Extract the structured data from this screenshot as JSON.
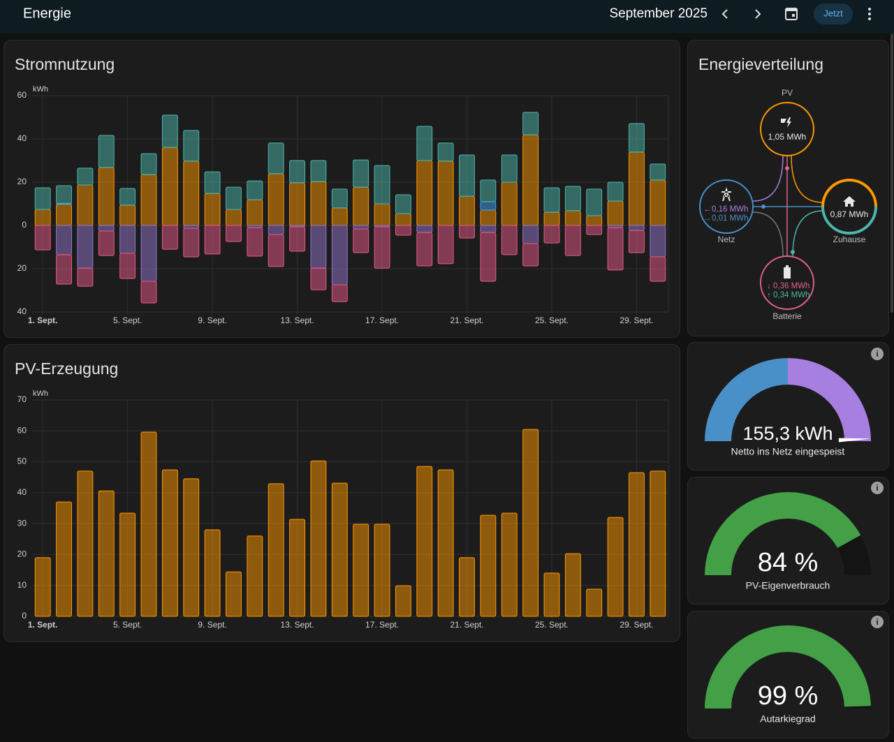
{
  "header": {
    "title": "Energie",
    "period": "September 2025",
    "now_button": "Jetzt"
  },
  "chart_data": [
    {
      "type": "bar",
      "title": "Stromnutzung",
      "unit": "kWh",
      "categories": [
        "1. Sept.",
        null,
        null,
        null,
        "5. Sept.",
        null,
        null,
        null,
        "9. Sept.",
        null,
        null,
        null,
        "13. Sept.",
        null,
        null,
        null,
        "17. Sept.",
        null,
        null,
        null,
        "21. Sept.",
        null,
        null,
        null,
        "25. Sept.",
        null,
        null,
        null,
        "29. Sept.",
        null
      ],
      "ylim": [
        -40,
        60
      ],
      "yticks": [
        {
          "value": -40,
          "label": "40"
        },
        {
          "value": -20,
          "label": "20"
        },
        0,
        20,
        40,
        60
      ],
      "series": [
        {
          "color": "#ff9800",
          "values": [
            7.4,
            9.7,
            18.7,
            26.8,
            9.4,
            23.5,
            36.1,
            29.7,
            14.8,
            7.4,
            11.9,
            23.9,
            19.7,
            20.3,
            8.1,
            17.7,
            10,
            5.5,
            30,
            29.7,
            13.5,
            7.1,
            20,
            41.9,
            6.1,
            6.8,
            4.5,
            11.3,
            33.9,
            21
          ]
        },
        {
          "color": "#42a5f5",
          "values": [
            0,
            0.5,
            0,
            0,
            0,
            0,
            0,
            0,
            0,
            0,
            0,
            0,
            0,
            0,
            0,
            0,
            0,
            0,
            0,
            0,
            0,
            3.9,
            0,
            0,
            0,
            0,
            0,
            0,
            0,
            0
          ]
        },
        {
          "color": "#4db6ac",
          "values": [
            10,
            8.2,
            7.8,
            14.8,
            7.7,
            9.7,
            14.9,
            14.2,
            10,
            10.3,
            8.7,
            14.2,
            10.3,
            9.7,
            8.7,
            12.6,
            17.7,
            8.7,
            15.8,
            8.4,
            19.1,
            10,
            12.6,
            10.4,
            11.3,
            11.3,
            12.3,
            8.7,
            13.2,
            7.4
          ]
        },
        {
          "color": "#9575cd",
          "values": [
            0,
            -13.5,
            -19.7,
            -2.6,
            -12.9,
            -25.8,
            0,
            -1.3,
            0,
            0,
            -1,
            -4.2,
            -0.6,
            -19.7,
            -27.4,
            -1.6,
            -0.6,
            0,
            -3.2,
            0,
            0,
            -3.2,
            0,
            -8.4,
            0,
            0,
            0,
            -1,
            -2.3,
            -14.5
          ]
        },
        {
          "color": "#e85a8a",
          "values": [
            -11.3,
            -13.6,
            -8.4,
            -11.3,
            -11.6,
            -10,
            -11,
            -13.2,
            -13.2,
            -7.4,
            -13.2,
            -14.8,
            -11.3,
            -10,
            -7.8,
            -11,
            -19.1,
            -4.5,
            -15.5,
            -17.7,
            -5.8,
            -22.6,
            -13.5,
            -10.3,
            -8.1,
            -13.9,
            -4.2,
            -19.6,
            -10.3,
            -11.3
          ]
        }
      ]
    },
    {
      "type": "bar",
      "title": "PV-Erzeugung",
      "unit": "kWh",
      "categories": [
        "1. Sept.",
        null,
        null,
        null,
        "5. Sept.",
        null,
        null,
        null,
        "9. Sept.",
        null,
        null,
        null,
        "13. Sept.",
        null,
        null,
        null,
        "17. Sept.",
        null,
        null,
        null,
        "21. Sept.",
        null,
        null,
        null,
        "25. Sept.",
        null,
        null,
        null,
        "29. Sept.",
        null
      ],
      "ylim": [
        0,
        70
      ],
      "yticks": [
        0,
        10,
        20,
        30,
        40,
        50,
        60,
        70
      ],
      "series": [
        {
          "color": "#ff9800",
          "values": [
            19,
            37,
            47,
            40.6,
            33.4,
            59.6,
            47.4,
            44.5,
            28,
            14.4,
            26,
            42.9,
            31.4,
            50.3,
            43.1,
            29.8,
            29.8,
            9.9,
            48.5,
            47.4,
            19,
            32.7,
            33.4,
            60.5,
            14,
            20.3,
            8.8,
            32,
            46.5,
            47
          ]
        }
      ]
    }
  ],
  "distribution": {
    "title": "Energieverteilung",
    "pv": {
      "label": "PV",
      "value": "1,05 MWh"
    },
    "grid": {
      "label": "Netz",
      "from": "0,16 MWh",
      "to": "0,01 MWh"
    },
    "home": {
      "label": "Zuhause",
      "value": "0,87 MWh"
    },
    "battery": {
      "label": "Batterie",
      "out": "0,36 MWh",
      "in": "0,34 MWh"
    }
  },
  "gauges": [
    {
      "value_label": "155,3 kWh",
      "label": "Netto ins Netz eingespeist"
    },
    {
      "value": 84,
      "value_label": "84 %",
      "label": "PV-Eigenverbrauch"
    },
    {
      "value": 99,
      "value_label": "99 %",
      "label": "Autarkiegrad"
    }
  ]
}
